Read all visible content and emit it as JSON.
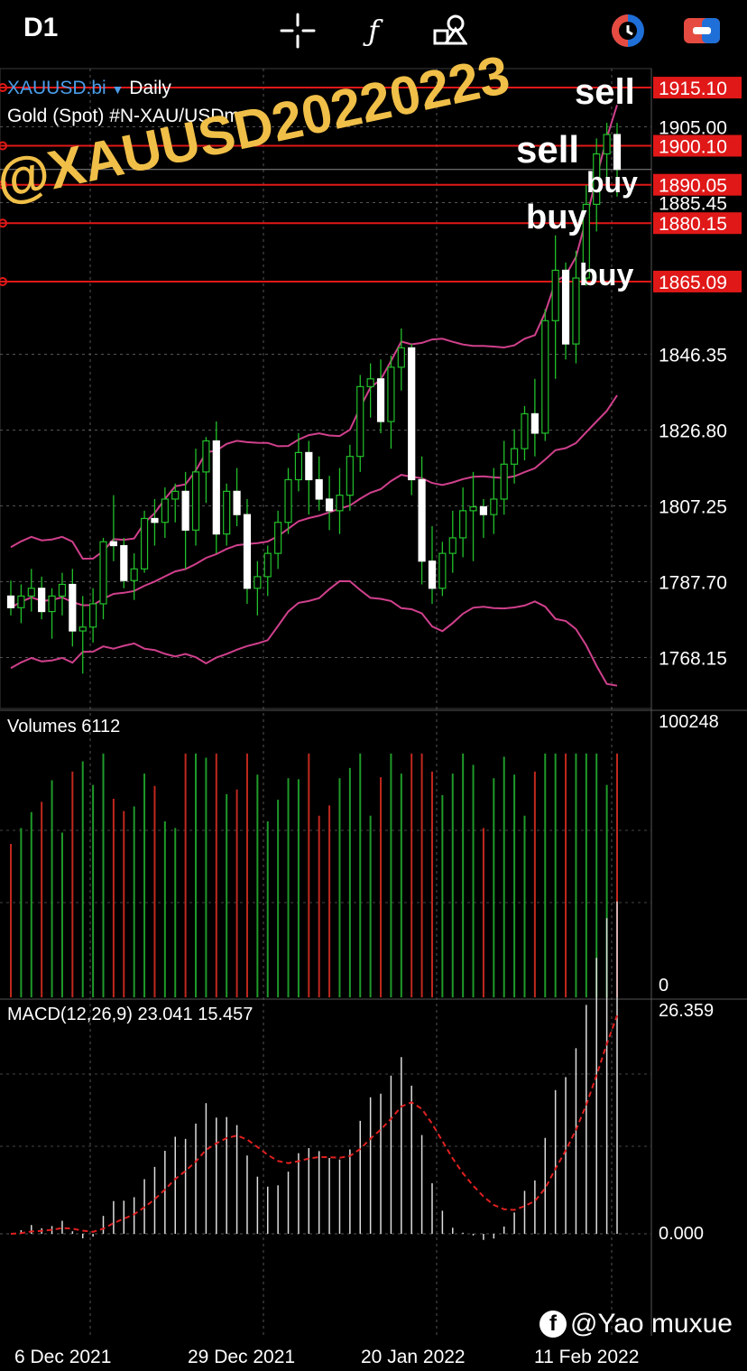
{
  "toolbar": {
    "timeframe": "D1",
    "icons": [
      "crosshair-icon",
      "function-icon",
      "objects-icon",
      "trade-icon",
      "settings-icon"
    ]
  },
  "symbol": {
    "name": "XAUUSD.bi",
    "arrow": "▼",
    "period": "Daily",
    "description": "Gold (Spot) #N-XAU/USDm"
  },
  "price_axis": [
    "1905.00",
    "1885.45",
    "1846.35",
    "1826.80",
    "1807.25",
    "1787.70",
    "1768.15"
  ],
  "levels": [
    {
      "price": 1915.1,
      "label": "1915.10"
    },
    {
      "price": 1900.1,
      "label": "1900.10"
    },
    {
      "price": 1890.05,
      "label": "1890.05"
    },
    {
      "price": 1880.15,
      "label": "1880.15"
    },
    {
      "price": 1865.09,
      "label": "1865.09"
    }
  ],
  "volume": {
    "label": "Volumes 6112",
    "max": "100248",
    "min": "0"
  },
  "macd": {
    "label": "MACD(12,26,9) 23.041 15.457",
    "max": "26.359",
    "zero": "0.000"
  },
  "date_axis": [
    "6 Dec 2021",
    "29 Dec 2021",
    "20 Jan 2022",
    "11 Feb 2022"
  ],
  "annotations": [
    {
      "text": "sell",
      "color": "#e040d8"
    },
    {
      "text": "sell",
      "color": "#7b4cf0"
    },
    {
      "text": "buy",
      "color": "#e040d8"
    },
    {
      "text": "buy",
      "color": "#7b4cf0"
    },
    {
      "text": "buy",
      "color": "#f0bf48"
    }
  ],
  "watermark": "@XAUUSD20220223",
  "credit": "@Yao muxue",
  "colors": {
    "bull": "#22c02a",
    "bear": "#ffffff",
    "band": "#d0408c",
    "level": "#e01818",
    "macd_signal": "#e02020",
    "vol_up": "#1f9a2a",
    "vol_down": "#c0281e"
  },
  "chart_data": {
    "type": "candlestick",
    "ylim": [
      1755,
      1920
    ],
    "candles": [
      [
        1784,
        1788,
        1779,
        1781
      ],
      [
        1781,
        1787,
        1777,
        1784
      ],
      [
        1784,
        1791,
        1780,
        1786
      ],
      [
        1786,
        1789,
        1778,
        1780
      ],
      [
        1780,
        1786,
        1773,
        1784
      ],
      [
        1784,
        1790,
        1779,
        1787
      ],
      [
        1787,
        1791,
        1771,
        1775
      ],
      [
        1775,
        1784,
        1764,
        1776
      ],
      [
        1776,
        1786,
        1772,
        1782
      ],
      [
        1782,
        1799,
        1778,
        1798
      ],
      [
        1798,
        1810,
        1793,
        1797
      ],
      [
        1797,
        1799,
        1786,
        1788
      ],
      [
        1788,
        1795,
        1783,
        1791
      ],
      [
        1791,
        1806,
        1790,
        1804
      ],
      [
        1804,
        1809,
        1797,
        1803
      ],
      [
        1803,
        1812,
        1799,
        1809
      ],
      [
        1809,
        1813,
        1803,
        1811
      ],
      [
        1811,
        1816,
        1791,
        1801
      ],
      [
        1801,
        1822,
        1797,
        1816
      ],
      [
        1816,
        1825,
        1808,
        1824
      ],
      [
        1824,
        1829,
        1795,
        1800
      ],
      [
        1800,
        1813,
        1797,
        1811
      ],
      [
        1811,
        1817,
        1802,
        1805
      ],
      [
        1805,
        1809,
        1782,
        1786
      ],
      [
        1786,
        1793,
        1779,
        1789
      ],
      [
        1789,
        1797,
        1784,
        1795
      ],
      [
        1795,
        1806,
        1791,
        1803
      ],
      [
        1803,
        1817,
        1800,
        1814
      ],
      [
        1814,
        1826,
        1811,
        1821
      ],
      [
        1821,
        1824,
        1805,
        1814
      ],
      [
        1814,
        1820,
        1806,
        1809
      ],
      [
        1809,
        1815,
        1801,
        1806
      ],
      [
        1806,
        1817,
        1800,
        1810
      ],
      [
        1810,
        1823,
        1806,
        1820
      ],
      [
        1820,
        1841,
        1816,
        1838
      ],
      [
        1838,
        1844,
        1830,
        1840
      ],
      [
        1840,
        1845,
        1826,
        1829
      ],
      [
        1829,
        1846,
        1822,
        1843
      ],
      [
        1843,
        1853,
        1837,
        1848
      ],
      [
        1848,
        1849,
        1810,
        1814
      ],
      [
        1814,
        1820,
        1787,
        1793
      ],
      [
        1793,
        1802,
        1782,
        1786
      ],
      [
        1786,
        1798,
        1784,
        1795
      ],
      [
        1795,
        1806,
        1790,
        1799
      ],
      [
        1799,
        1812,
        1794,
        1806
      ],
      [
        1806,
        1816,
        1793,
        1807
      ],
      [
        1807,
        1809,
        1799,
        1805
      ],
      [
        1805,
        1817,
        1800,
        1809
      ],
      [
        1809,
        1824,
        1805,
        1818
      ],
      [
        1818,
        1827,
        1813,
        1822
      ],
      [
        1822,
        1833,
        1819,
        1831
      ],
      [
        1831,
        1840,
        1820,
        1826
      ],
      [
        1826,
        1858,
        1824,
        1855
      ],
      [
        1855,
        1877,
        1840,
        1868
      ],
      [
        1868,
        1870,
        1845,
        1849
      ],
      [
        1849,
        1873,
        1844,
        1866
      ],
      [
        1866,
        1890,
        1864,
        1885
      ],
      [
        1885,
        1902,
        1878,
        1898
      ],
      [
        1898,
        1906,
        1892,
        1903
      ],
      [
        1903,
        1906,
        1887,
        1894
      ]
    ]
  }
}
